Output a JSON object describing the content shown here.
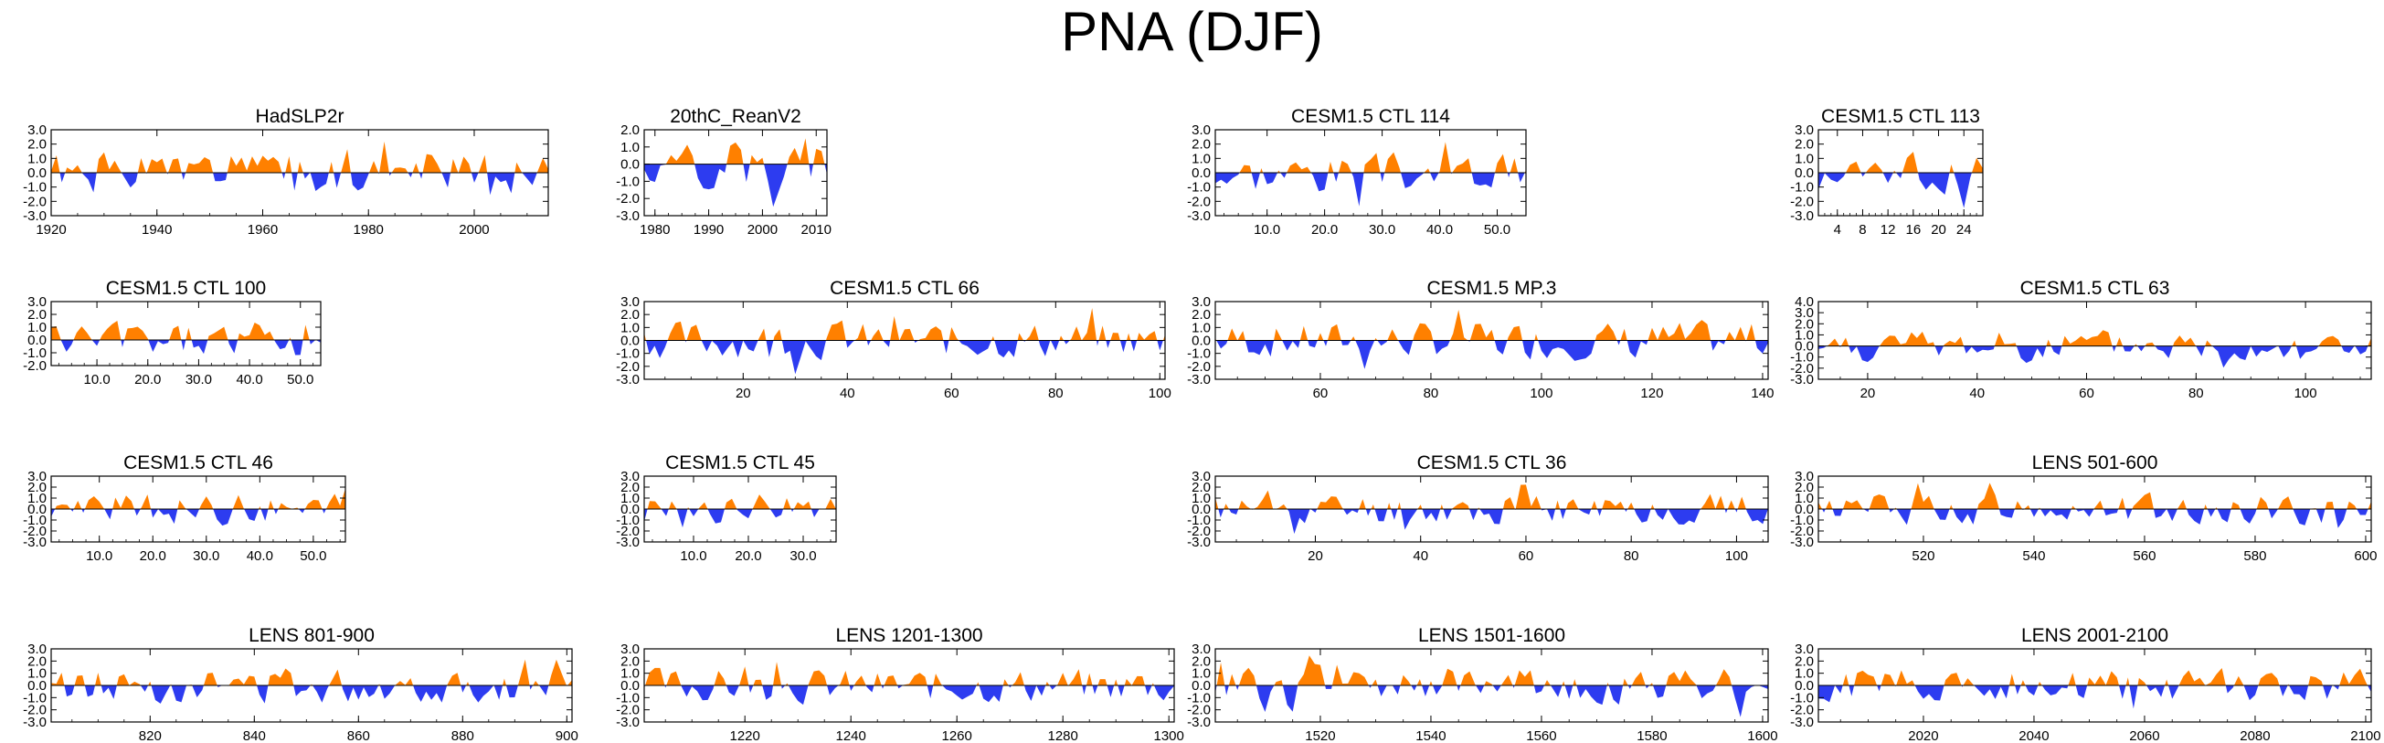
{
  "title": "PNA (DJF)",
  "colors": {
    "positive": "#ff8000",
    "negative": "#2d3cf0",
    "frame": "#000000"
  },
  "chart_data": [
    {
      "type": "area",
      "title": "HadSLP2r",
      "x_start": 1920,
      "x_end": 2014,
      "xticks": [
        1920,
        1940,
        1960,
        1980,
        2000
      ],
      "xtick_labels": [
        "1920",
        "1940",
        "1960",
        "1980",
        "2000"
      ],
      "yticks": [
        "3.0",
        "2.0",
        "1.0",
        "0.0",
        "-1.0",
        "-2.0",
        "-3.0"
      ],
      "ylim": [
        -3,
        3
      ],
      "seed": 1
    },
    {
      "type": "area",
      "title": "20thC_ReanV2",
      "x_start": 1978,
      "x_end": 2012,
      "xticks": [
        1980,
        1990,
        2000,
        2010
      ],
      "xtick_labels": [
        "1980",
        "1990",
        "2000",
        "2010"
      ],
      "yticks": [
        "2.0",
        "1.0",
        "0.0",
        "-1.0",
        "-2.0",
        "-3.0"
      ],
      "ylim": [
        -3,
        2
      ],
      "seed": 2
    },
    {
      "type": "area",
      "title": "CESM1.5 CTL 114",
      "x_start": 1,
      "x_end": 55,
      "xticks": [
        10,
        20,
        30,
        40,
        50
      ],
      "xtick_labels": [
        "10.0",
        "20.0",
        "30.0",
        "40.0",
        "50.0"
      ],
      "yticks": [
        "3.0",
        "2.0",
        "1.0",
        "0.0",
        "-1.0",
        "-2.0",
        "-3.0"
      ],
      "ylim": [
        -3,
        3
      ],
      "seed": 3
    },
    {
      "type": "area",
      "title": "CESM1.5 CTL 113",
      "x_start": 1,
      "x_end": 27,
      "xticks": [
        4,
        8,
        12,
        16,
        20,
        24
      ],
      "xtick_labels": [
        "4",
        "8",
        "12",
        "16",
        "20",
        "24"
      ],
      "yticks": [
        "3.0",
        "2.0",
        "1.0",
        "0.0",
        "-1.0",
        "-2.0",
        "-3.0"
      ],
      "ylim": [
        -3,
        3
      ],
      "seed": 4
    },
    {
      "type": "area",
      "title": "CESM1.5 CTL 100",
      "x_start": 1,
      "x_end": 54,
      "xticks": [
        10,
        20,
        30,
        40,
        50
      ],
      "xtick_labels": [
        "10.0",
        "20.0",
        "30.0",
        "40.0",
        "50.0"
      ],
      "yticks": [
        "3.0",
        "2.0",
        "1.0",
        "0.0",
        "-1.0",
        "-2.0"
      ],
      "ylim": [
        -2,
        3
      ],
      "seed": 5
    },
    {
      "type": "area",
      "title": "CESM1.5 CTL 66",
      "x_start": 1,
      "x_end": 101,
      "xticks": [
        20,
        40,
        60,
        80,
        100
      ],
      "xtick_labels": [
        "20",
        "40",
        "60",
        "80",
        "100"
      ],
      "yticks": [
        "3.0",
        "2.0",
        "1.0",
        "0.0",
        "-1.0",
        "-2.0",
        "-3.0"
      ],
      "ylim": [
        -3,
        3
      ],
      "seed": 6
    },
    {
      "type": "area",
      "title": "CESM1.5 MP.3",
      "x_start": 41,
      "x_end": 141,
      "xticks": [
        60,
        80,
        100,
        120,
        140
      ],
      "xtick_labels": [
        "60",
        "80",
        "100",
        "120",
        "140"
      ],
      "yticks": [
        "3.0",
        "2.0",
        "1.0",
        "0.0",
        "-1.0",
        "-2.0",
        "-3.0"
      ],
      "ylim": [
        -3,
        3
      ],
      "seed": 7
    },
    {
      "type": "area",
      "title": "CESM1.5 CTL 63",
      "x_start": 11,
      "x_end": 112,
      "xticks": [
        20,
        40,
        60,
        80,
        100
      ],
      "xtick_labels": [
        "20",
        "40",
        "60",
        "80",
        "100"
      ],
      "yticks": [
        "4.0",
        "3.0",
        "2.0",
        "1.0",
        "0.0",
        "-1.0",
        "-2.0",
        "-3.0"
      ],
      "ylim": [
        -3,
        4
      ],
      "seed": 8
    },
    {
      "type": "area",
      "title": "CESM1.5 CTL 46",
      "x_start": 1,
      "x_end": 56,
      "xticks": [
        10,
        20,
        30,
        40,
        50
      ],
      "xtick_labels": [
        "10.0",
        "20.0",
        "30.0",
        "40.0",
        "50.0"
      ],
      "yticks": [
        "3.0",
        "2.0",
        "1.0",
        "0.0",
        "-1.0",
        "-2.0",
        "-3.0"
      ],
      "ylim": [
        -3,
        3
      ],
      "seed": 9
    },
    {
      "type": "area",
      "title": "CESM1.5 CTL 45",
      "x_start": 1,
      "x_end": 36,
      "xticks": [
        10,
        20,
        30
      ],
      "xtick_labels": [
        "10.0",
        "20.0",
        "30.0"
      ],
      "yticks": [
        "3.0",
        "2.0",
        "1.0",
        "0.0",
        "-1.0",
        "-2.0",
        "-3.0"
      ],
      "ylim": [
        -3,
        3
      ],
      "seed": 10
    },
    {
      "type": "area",
      "title": "CESM1.5 CTL 36",
      "x_start": 1,
      "x_end": 106,
      "xticks": [
        20,
        40,
        60,
        80,
        100
      ],
      "xtick_labels": [
        "20",
        "40",
        "60",
        "80",
        "100"
      ],
      "yticks": [
        "3.0",
        "2.0",
        "1.0",
        "0.0",
        "-1.0",
        "-2.0",
        "-3.0"
      ],
      "ylim": [
        -3,
        3
      ],
      "seed": 11
    },
    {
      "type": "area",
      "title": "LENS 501-600",
      "x_start": 501,
      "x_end": 601,
      "xticks": [
        520,
        540,
        560,
        580,
        600
      ],
      "xtick_labels": [
        "520",
        "540",
        "560",
        "580",
        "600"
      ],
      "yticks": [
        "3.0",
        "2.0",
        "1.0",
        "0.0",
        "-1.0",
        "-2.0",
        "-3.0"
      ],
      "ylim": [
        -3,
        3
      ],
      "seed": 12
    },
    {
      "type": "area",
      "title": "LENS 801-900",
      "x_start": 801,
      "x_end": 901,
      "xticks": [
        820,
        840,
        860,
        880,
        900
      ],
      "xtick_labels": [
        "820",
        "840",
        "860",
        "880",
        "900"
      ],
      "yticks": [
        "3.0",
        "2.0",
        "1.0",
        "0.0",
        "-1.0",
        "-2.0",
        "-3.0"
      ],
      "ylim": [
        -3,
        3
      ],
      "seed": 13
    },
    {
      "type": "area",
      "title": "LENS 1201-1300",
      "x_start": 1201,
      "x_end": 1301,
      "xticks": [
        1220,
        1240,
        1260,
        1280,
        1300
      ],
      "xtick_labels": [
        "1220",
        "1240",
        "1260",
        "1280",
        "1300"
      ],
      "yticks": [
        "3.0",
        "2.0",
        "1.0",
        "0.0",
        "-1.0",
        "-2.0",
        "-3.0"
      ],
      "ylim": [
        -3,
        3
      ],
      "seed": 14
    },
    {
      "type": "area",
      "title": "LENS 1501-1600",
      "x_start": 1501,
      "x_end": 1601,
      "xticks": [
        1520,
        1540,
        1560,
        1580,
        1600
      ],
      "xtick_labels": [
        "1520",
        "1540",
        "1560",
        "1580",
        "1600"
      ],
      "yticks": [
        "3.0",
        "2.0",
        "1.0",
        "0.0",
        "-1.0",
        "-2.0",
        "-3.0"
      ],
      "ylim": [
        -3,
        3
      ],
      "seed": 15
    },
    {
      "type": "area",
      "title": "LENS 2001-2100",
      "x_start": 2001,
      "x_end": 2101,
      "xticks": [
        2020,
        2040,
        2060,
        2080,
        2100
      ],
      "xtick_labels": [
        "2020",
        "2040",
        "2060",
        "2080",
        "2100"
      ],
      "yticks": [
        "3.0",
        "2.0",
        "1.0",
        "0.0",
        "-1.0",
        "-2.0",
        "-3.0"
      ],
      "ylim": [
        -3,
        3
      ],
      "seed": 16
    }
  ]
}
